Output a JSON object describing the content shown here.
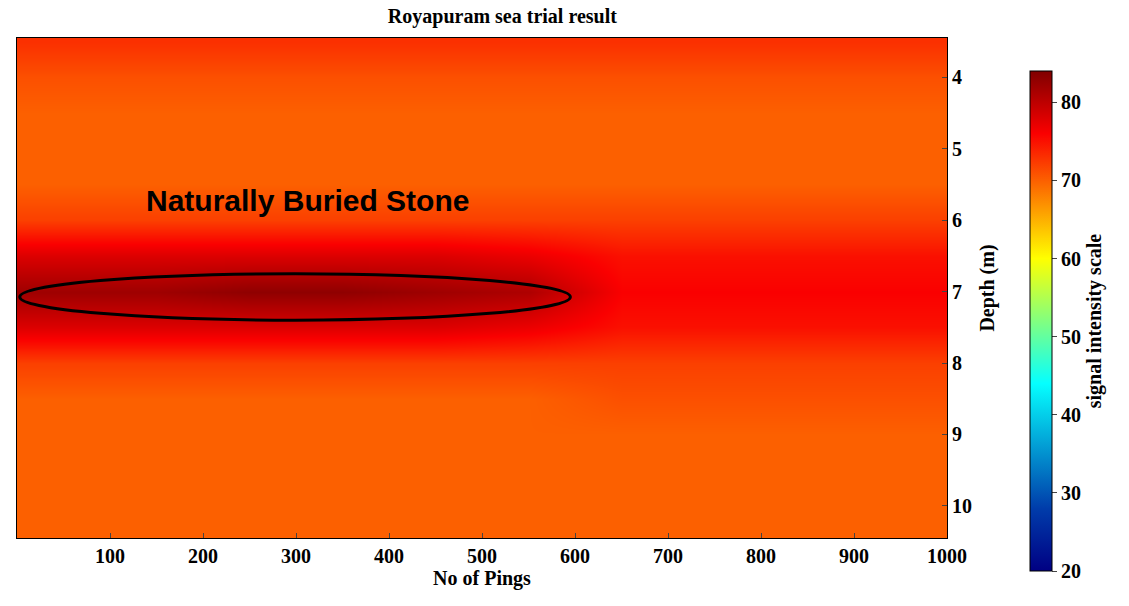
{
  "chart_data": {
    "type": "heatmap",
    "title": "Royapuram sea trial result",
    "x_label": "No of Pings",
    "y_label": "Depth (m)",
    "x": [
      50,
      150,
      250,
      350,
      450,
      550,
      650,
      750,
      850,
      950
    ],
    "y": [
      3.5,
      4.0,
      4.5,
      5.0,
      5.5,
      6.0,
      6.5,
      7.0,
      7.5,
      8.0,
      8.5,
      9.0,
      9.5,
      10.0,
      10.5
    ],
    "z": [
      [
        73,
        73,
        73,
        73,
        73,
        73,
        73,
        73,
        73,
        73
      ],
      [
        71,
        71,
        71,
        71,
        71,
        71,
        71,
        71,
        71,
        71
      ],
      [
        70,
        70,
        70,
        70,
        70,
        70,
        70,
        70,
        70,
        70
      ],
      [
        70,
        70,
        70,
        70,
        70,
        70,
        70,
        70,
        70,
        70
      ],
      [
        70,
        70,
        70,
        70,
        70,
        70,
        70,
        70,
        70,
        70
      ],
      [
        72,
        72,
        72,
        72,
        72,
        72,
        72,
        72,
        72,
        72
      ],
      [
        78,
        78,
        78,
        78,
        78,
        77,
        75,
        75,
        75,
        75
      ],
      [
        82,
        82,
        83,
        83,
        82,
        81,
        76,
        76,
        76,
        76
      ],
      [
        78,
        78,
        78,
        78,
        78,
        77,
        75,
        75,
        75,
        75
      ],
      [
        72,
        72,
        72,
        72,
        72,
        72,
        72,
        72,
        72,
        72
      ],
      [
        70,
        70,
        70,
        70,
        70,
        70,
        71,
        71,
        71,
        71
      ],
      [
        70,
        70,
        70,
        70,
        70,
        70,
        70,
        70,
        70,
        70
      ],
      [
        70,
        70,
        70,
        70,
        70,
        70,
        70,
        70,
        70,
        70
      ],
      [
        70,
        70,
        70,
        70,
        70,
        70,
        70,
        70,
        70,
        70
      ],
      [
        70,
        70,
        70,
        70,
        70,
        70,
        70,
        70,
        70,
        70
      ]
    ],
    "zlim": [
      20,
      84
    ],
    "zticks": [
      20,
      30,
      40,
      50,
      60,
      70,
      80
    ],
    "colorbar_label": "signal intensity scale",
    "xlim": [
      0,
      1000
    ],
    "xticks": [
      100,
      200,
      300,
      400,
      500,
      600,
      700,
      800,
      900,
      1000
    ],
    "ylim": [
      10.45,
      3.45
    ],
    "yticks": [
      4,
      5,
      6,
      7,
      8,
      9,
      10
    ],
    "grid": false,
    "annotations": [
      {
        "text": "Naturally Buried Stone",
        "x": 312,
        "y": 5.72,
        "ellipse": {
          "x": [
            3,
            595
          ],
          "y": [
            6.75,
            7.4
          ]
        }
      }
    ]
  }
}
